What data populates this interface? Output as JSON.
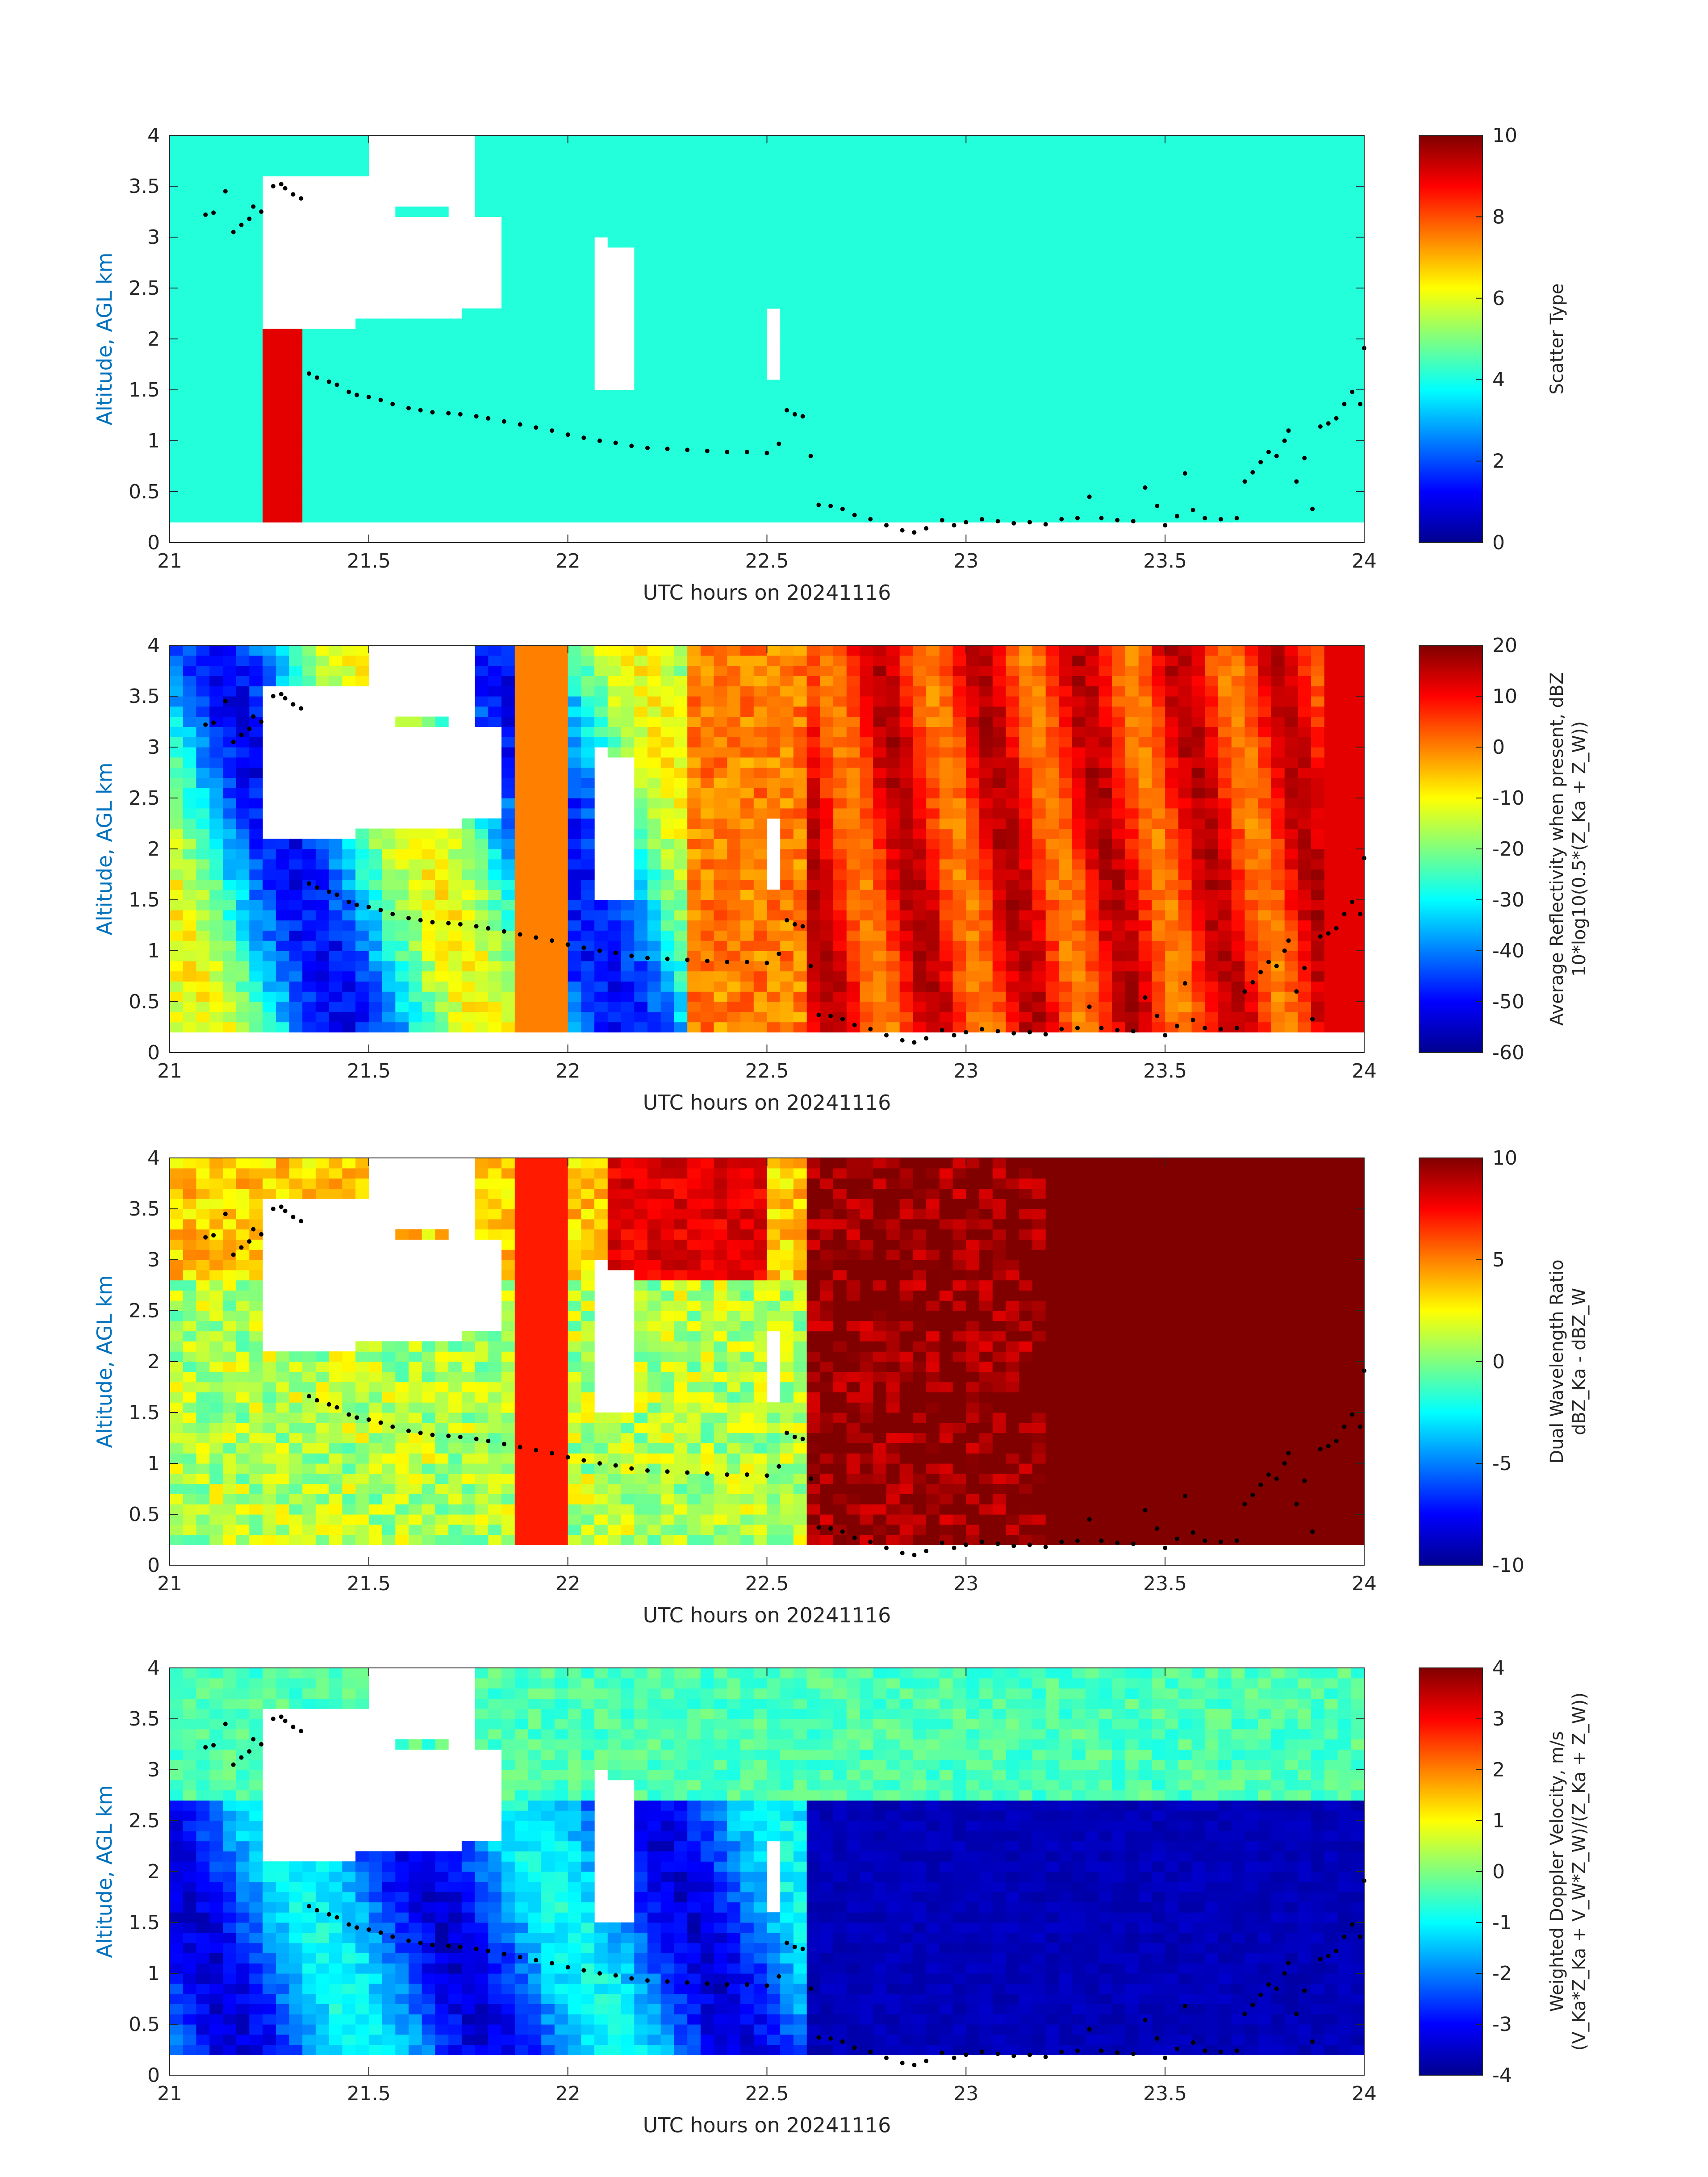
{
  "chart_data": [
    {
      "type": "heatmap",
      "xlabel": "UTC hours on 20241116",
      "ylabel": "Altitude, AGL km",
      "xlim": [
        21,
        24
      ],
      "ylim": [
        0,
        4
      ],
      "xticks": [
        "21",
        "21.5",
        "22",
        "22.5",
        "23",
        "23.5",
        "24"
      ],
      "yticks": [
        "0",
        "0.5",
        "1",
        "1.5",
        "2",
        "2.5",
        "3",
        "3.5",
        "4"
      ],
      "colorbar": {
        "label": "Scatter Type",
        "label2": "",
        "min": 0,
        "max": 10,
        "ticks": [
          "0",
          "2",
          "4",
          "6",
          "8",
          "10"
        ]
      },
      "field": "scatter_type",
      "notes": "Mostly value ~4 everywhere with data; value ~9 column at 21.23-21.33 h from 0.2 to 2.1 km; white (no data) cloud-free regions."
    },
    {
      "type": "heatmap",
      "xlabel": "UTC hours on 20241116",
      "ylabel": "Altitude, AGL km",
      "xlim": [
        21,
        24
      ],
      "ylim": [
        0,
        4
      ],
      "xticks": [
        "21",
        "21.5",
        "22",
        "22.5",
        "23",
        "23.5",
        "24"
      ],
      "yticks": [
        "0",
        "0.5",
        "1",
        "1.5",
        "2",
        "2.5",
        "3",
        "3.5",
        "4"
      ],
      "colorbar": {
        "label": "Average Reflectivity when present, dBZ",
        "label2": "10*log10(0.5*(Z_Ka + Z_W))",
        "min": -60,
        "max": 20,
        "ticks": [
          "-60",
          "-50",
          "-40",
          "-30",
          "-20",
          "-10",
          "0",
          "10",
          "20"
        ]
      },
      "field": "reflectivity",
      "notes": "Low (-40 to -20 dBZ) before 22.6 h in patches, rising to 5-15 dBZ after 22.6 h with streaks."
    },
    {
      "type": "heatmap",
      "xlabel": "UTC hours on 20241116",
      "ylabel": "Altitude, AGL km",
      "xlim": [
        21,
        24
      ],
      "ylim": [
        0,
        4
      ],
      "xticks": [
        "21",
        "21.5",
        "22",
        "22.5",
        "23",
        "23.5",
        "24"
      ],
      "yticks": [
        "0",
        "0.5",
        "1",
        "1.5",
        "2",
        "2.5",
        "3",
        "3.5",
        "4"
      ],
      "colorbar": {
        "label": "Dual Wavelength Ratio",
        "label2": "dBZ_Ka - dBZ_W",
        "min": -10,
        "max": 10,
        "ticks": [
          "-10",
          "-5",
          "0",
          "5",
          "10"
        ]
      },
      "field": "dwr",
      "notes": "About 0-2 dB before 22.6 h, saturating near 10 dB after 22.6 h."
    },
    {
      "type": "heatmap",
      "xlabel": "UTC hours on 20241116",
      "ylabel": "Altitude, AGL km",
      "xlim": [
        21,
        24
      ],
      "ylim": [
        0,
        4
      ],
      "xticks": [
        "21",
        "21.5",
        "22",
        "22.5",
        "23",
        "23.5",
        "24"
      ],
      "yticks": [
        "0",
        "0.5",
        "1",
        "1.5",
        "2",
        "2.5",
        "3",
        "3.5",
        "4"
      ],
      "colorbar": {
        "label": "Weighted Doppler Velocity, m/s",
        "label2": "(V_Ka*Z_Ka + V_W*Z_W)/(Z_Ka + Z_W))",
        "min": -4,
        "max": 4,
        "ticks": [
          "-4",
          "-3",
          "-2",
          "-1",
          "0",
          "1",
          "2",
          "3",
          "4"
        ]
      },
      "field": "velocity",
      "notes": "About -0.5 to 0 m/s above 2.7 km; -1.5 to -3 below before 22.6 h; about -4 m/s after 22.6 h below 2.7 km."
    }
  ],
  "cloud_base_dots": [
    [
      21.09,
      3.22
    ],
    [
      21.11,
      3.24
    ],
    [
      21.14,
      3.45
    ],
    [
      21.16,
      3.05
    ],
    [
      21.18,
      3.12
    ],
    [
      21.2,
      3.18
    ],
    [
      21.21,
      3.3
    ],
    [
      21.23,
      3.25
    ],
    [
      21.26,
      3.5
    ],
    [
      21.28,
      3.52
    ],
    [
      21.29,
      3.48
    ],
    [
      21.31,
      3.42
    ],
    [
      21.33,
      3.38
    ],
    [
      21.35,
      1.66
    ],
    [
      21.37,
      1.62
    ],
    [
      21.4,
      1.58
    ],
    [
      21.42,
      1.55
    ],
    [
      21.45,
      1.48
    ],
    [
      21.47,
      1.45
    ],
    [
      21.5,
      1.43
    ],
    [
      21.53,
      1.4
    ],
    [
      21.56,
      1.36
    ],
    [
      21.6,
      1.32
    ],
    [
      21.63,
      1.3
    ],
    [
      21.66,
      1.28
    ],
    [
      21.7,
      1.27
    ],
    [
      21.73,
      1.26
    ],
    [
      21.77,
      1.24
    ],
    [
      21.8,
      1.22
    ],
    [
      21.84,
      1.19
    ],
    [
      21.88,
      1.16
    ],
    [
      21.92,
      1.13
    ],
    [
      21.96,
      1.1
    ],
    [
      22.0,
      1.06
    ],
    [
      22.04,
      1.03
    ],
    [
      22.08,
      1.0
    ],
    [
      22.12,
      0.98
    ],
    [
      22.16,
      0.95
    ],
    [
      22.2,
      0.93
    ],
    [
      22.25,
      0.92
    ],
    [
      22.3,
      0.91
    ],
    [
      22.35,
      0.9
    ],
    [
      22.4,
      0.89
    ],
    [
      22.45,
      0.89
    ],
    [
      22.5,
      0.88
    ],
    [
      22.53,
      0.97
    ],
    [
      22.55,
      1.3
    ],
    [
      22.57,
      1.26
    ],
    [
      22.59,
      1.24
    ],
    [
      22.61,
      0.85
    ],
    [
      22.63,
      0.37
    ],
    [
      22.66,
      0.36
    ],
    [
      22.69,
      0.33
    ],
    [
      22.72,
      0.27
    ],
    [
      22.76,
      0.23
    ],
    [
      22.8,
      0.17
    ],
    [
      22.84,
      0.12
    ],
    [
      22.87,
      0.1
    ],
    [
      22.9,
      0.14
    ],
    [
      22.94,
      0.22
    ],
    [
      22.97,
      0.17
    ],
    [
      23.0,
      0.2
    ],
    [
      23.04,
      0.23
    ],
    [
      23.08,
      0.21
    ],
    [
      23.12,
      0.19
    ],
    [
      23.16,
      0.2
    ],
    [
      23.2,
      0.18
    ],
    [
      23.24,
      0.23
    ],
    [
      23.28,
      0.24
    ],
    [
      23.31,
      0.45
    ],
    [
      23.34,
      0.24
    ],
    [
      23.38,
      0.22
    ],
    [
      23.42,
      0.21
    ],
    [
      23.45,
      0.54
    ],
    [
      23.48,
      0.36
    ],
    [
      23.5,
      0.17
    ],
    [
      23.53,
      0.26
    ],
    [
      23.55,
      0.68
    ],
    [
      23.57,
      0.32
    ],
    [
      23.6,
      0.24
    ],
    [
      23.64,
      0.23
    ],
    [
      23.68,
      0.24
    ],
    [
      23.7,
      0.6
    ],
    [
      23.72,
      0.69
    ],
    [
      23.74,
      0.79
    ],
    [
      23.76,
      0.89
    ],
    [
      23.78,
      0.85
    ],
    [
      23.8,
      1.0
    ],
    [
      23.81,
      1.1
    ],
    [
      23.83,
      0.6
    ],
    [
      23.85,
      0.83
    ],
    [
      23.87,
      0.33
    ],
    [
      23.89,
      1.14
    ],
    [
      23.91,
      1.17
    ],
    [
      23.93,
      1.22
    ],
    [
      23.95,
      1.36
    ],
    [
      23.97,
      1.48
    ],
    [
      23.99,
      1.36
    ],
    [
      24.0,
      1.91
    ]
  ]
}
